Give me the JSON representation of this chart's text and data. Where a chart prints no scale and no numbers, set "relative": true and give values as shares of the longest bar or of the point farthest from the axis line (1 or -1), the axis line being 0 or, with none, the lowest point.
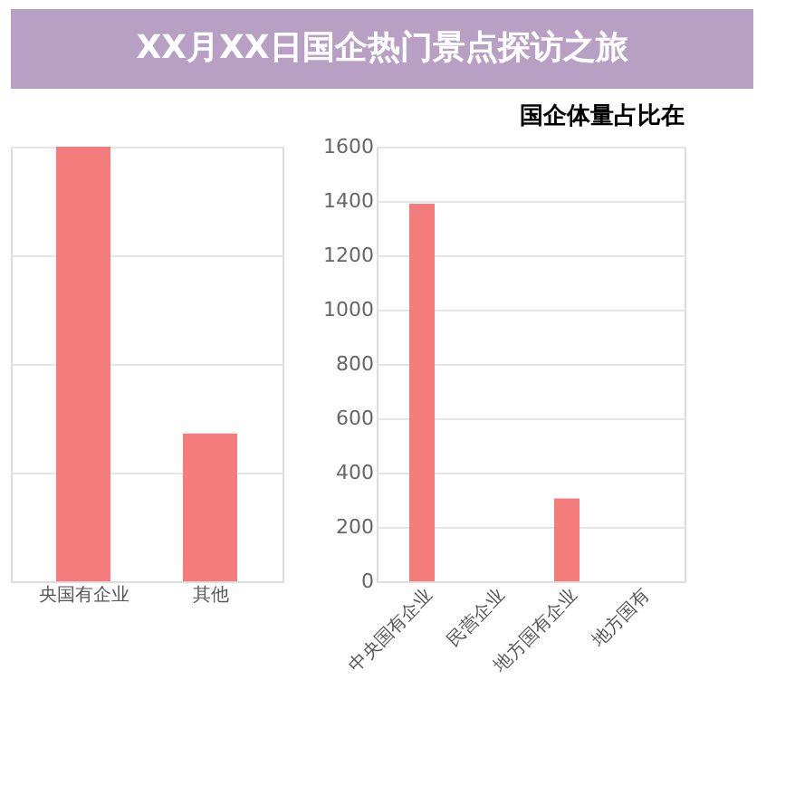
{
  "chart_data": [
    {
      "type": "other",
      "title": "XX月XX日国企热门景点探访之旅"
    },
    {
      "type": "bar",
      "relative": true,
      "categories": [
        "央国有企业",
        "其他"
      ],
      "values": [
        1,
        0.34
      ],
      "color": "#f47c7c",
      "grid": "y"
    },
    {
      "type": "bar",
      "title": "国企体量占比在",
      "categories": [
        "中央国有企业",
        "民营企业",
        "地方国有企业",
        "地方国有"
      ],
      "values": [
        1390,
        null,
        305,
        null
      ],
      "colors": [
        "#f47c7c",
        "#7fa3b9",
        "#f47c7c",
        "#f47c7c"
      ],
      "ylim": [
        0,
        1600
      ],
      "yticks": [
        0,
        200,
        400,
        600,
        800,
        1000,
        1200,
        1400,
        1600
      ],
      "grid": "y"
    }
  ]
}
